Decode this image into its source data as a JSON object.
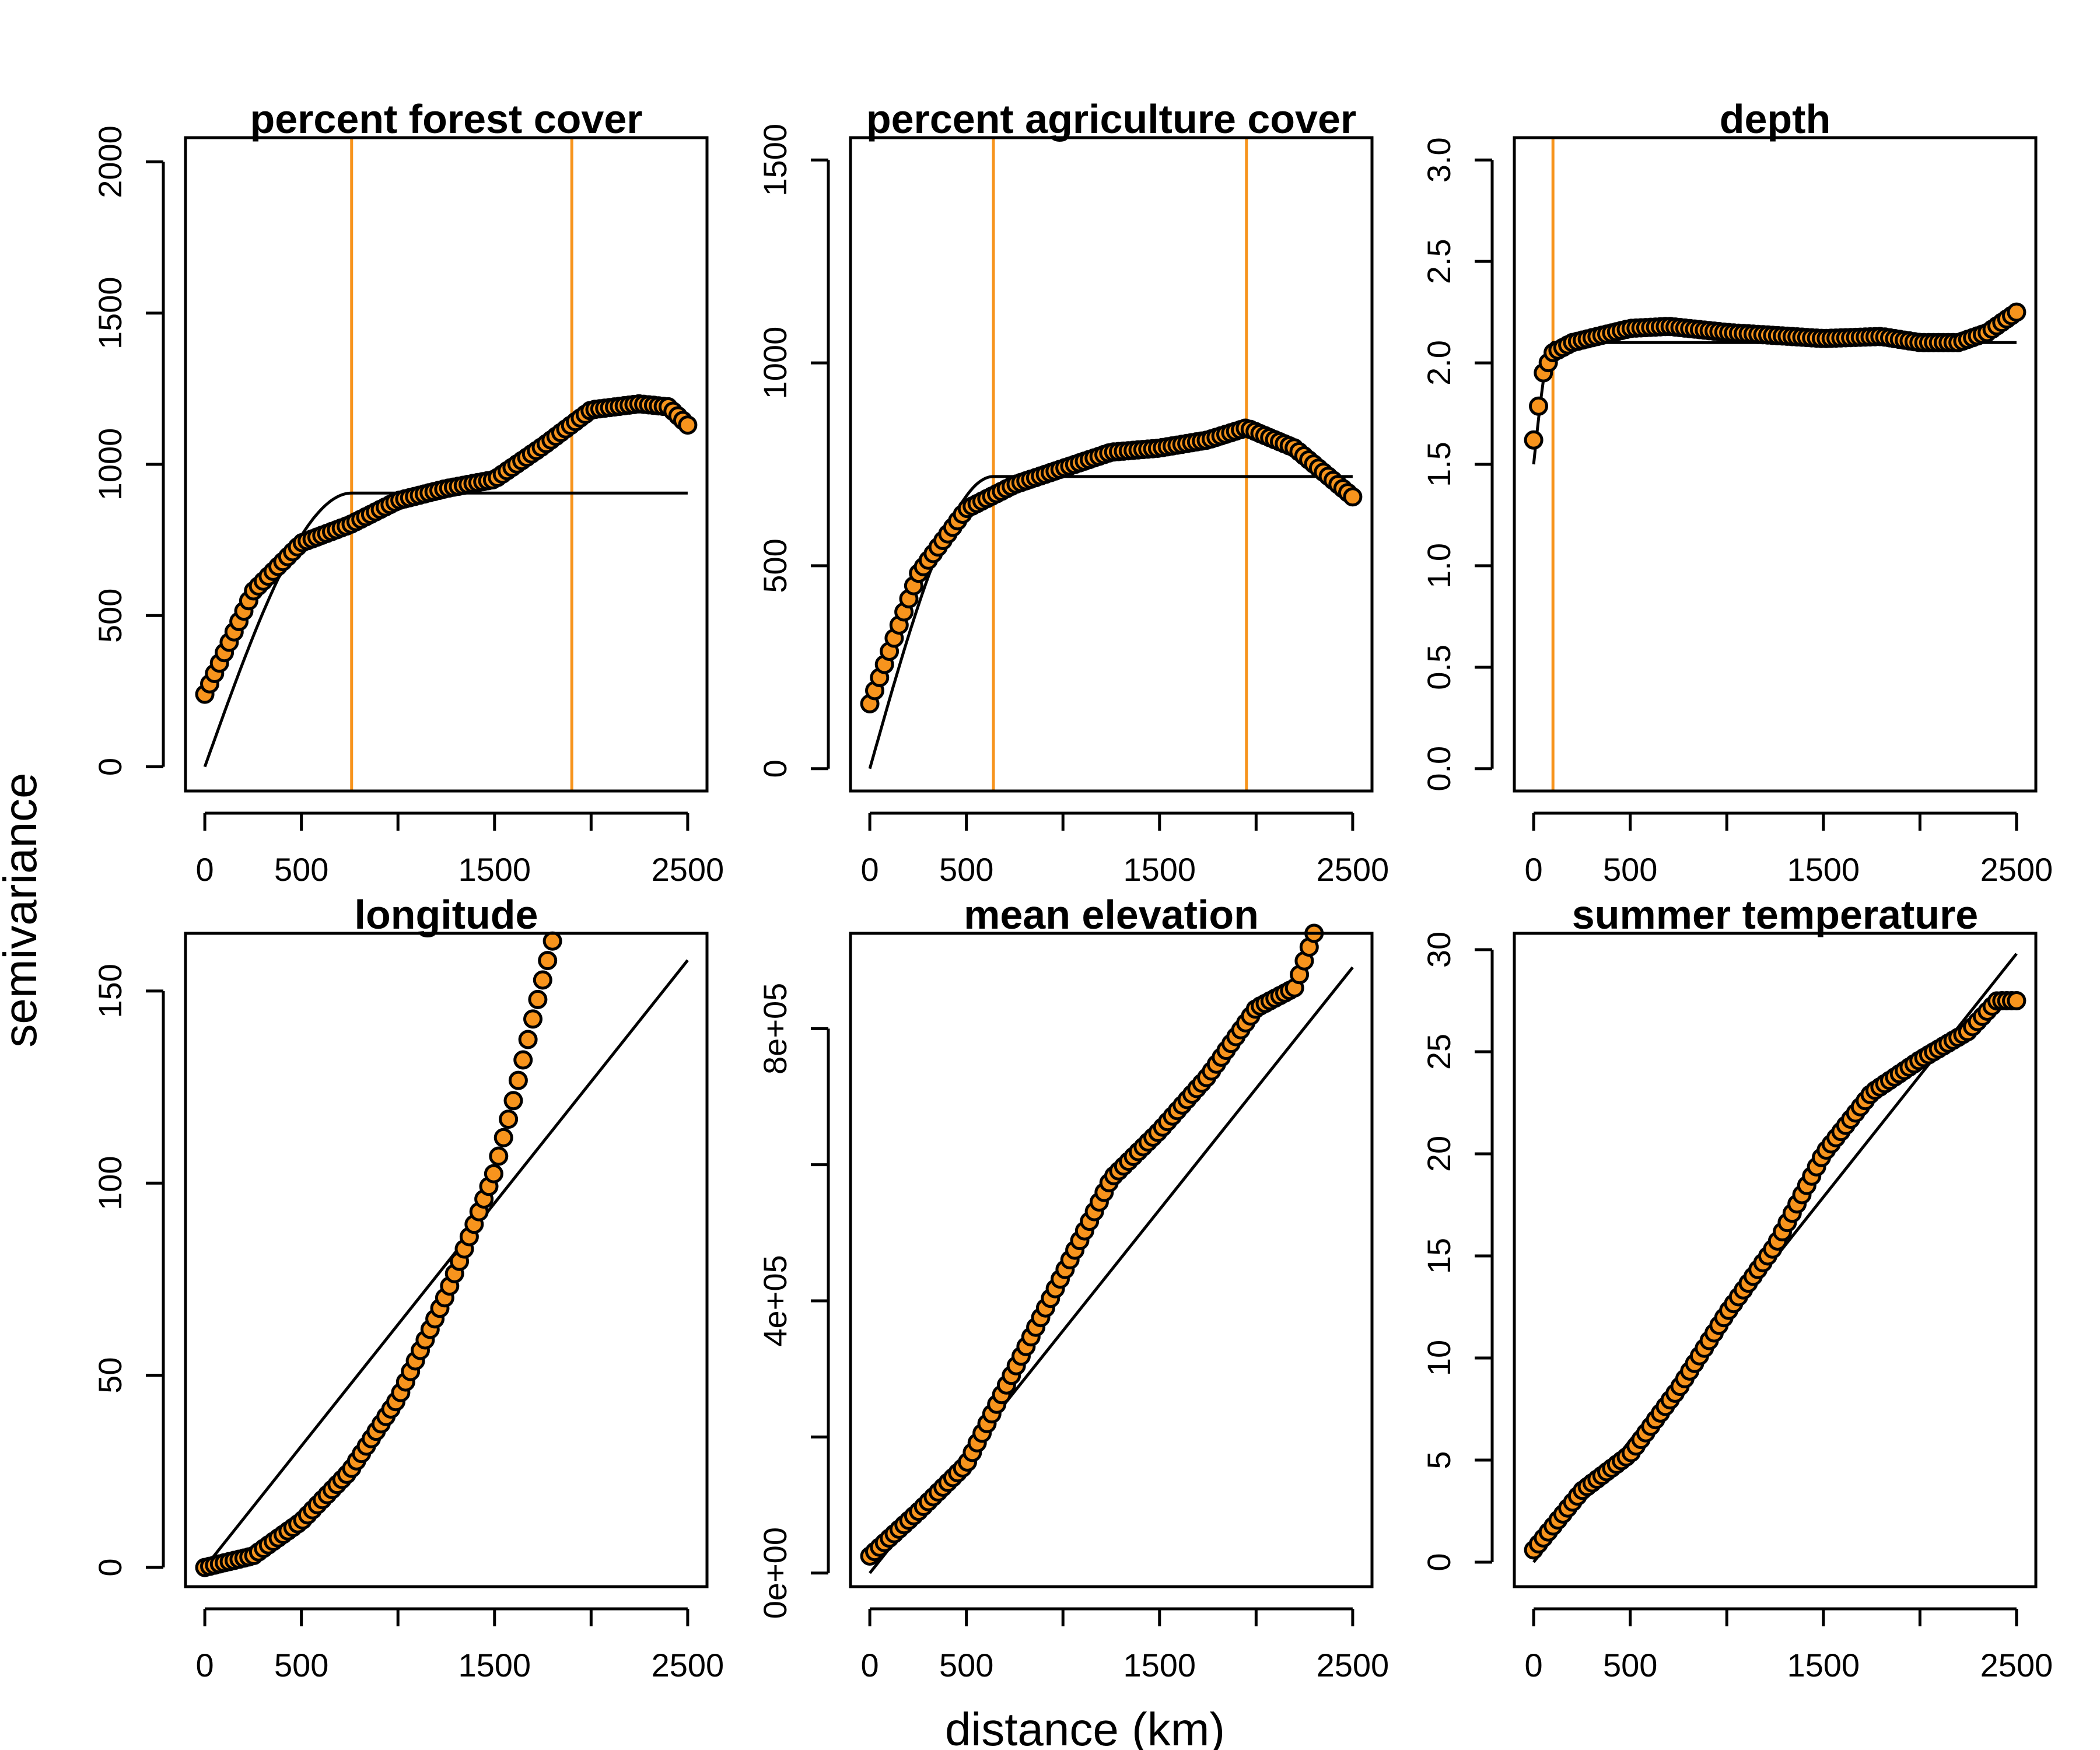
{
  "figure": {
    "xlabel": "distance (km)",
    "ylabel": "semivariance",
    "point_fill": "#F7941D",
    "point_stroke": "#000000",
    "vline_color": "#F7941D",
    "model_line_color": "#000000"
  },
  "chart_data": [
    {
      "type": "scatter",
      "title": "percent forest cover",
      "xlim": [
        -100,
        2600
      ],
      "ylim": [
        -80,
        2080
      ],
      "xticks": [
        0,
        500,
        1000,
        1500,
        2000,
        2500
      ],
      "xticklabels": [
        "0",
        "500",
        "",
        "1500",
        "",
        "2500"
      ],
      "yticks": [
        0,
        500,
        1000,
        1500,
        2000
      ],
      "yticklabels": [
        "0",
        "500",
        "1000",
        "1500",
        "2000"
      ],
      "vlines": [
        760,
        1900
      ],
      "model": {
        "kind": "spherical",
        "nugget": 0,
        "sill": 905,
        "range": 760,
        "xmax": 2500
      },
      "series": [
        {
          "x": [
            0,
            250,
            500,
            750,
            1000,
            1250,
            1500,
            1750,
            2000,
            2250,
            2400,
            2500
          ],
          "y": [
            240,
            580,
            740,
            800,
            880,
            920,
            950,
            1060,
            1180,
            1200,
            1190,
            1130
          ]
        }
      ]
    },
    {
      "type": "scatter",
      "title": "percent agriculture cover",
      "xlim": [
        -100,
        2600
      ],
      "ylim": [
        -55,
        1555
      ],
      "xticks": [
        0,
        500,
        1000,
        1500,
        2000,
        2500
      ],
      "xticklabels": [
        "0",
        "500",
        "",
        "1500",
        "",
        "2500"
      ],
      "yticks": [
        0,
        500,
        1000,
        1500
      ],
      "yticklabels": [
        "0",
        "500",
        "1000",
        "1500"
      ],
      "vlines": [
        640,
        1950
      ],
      "model": {
        "kind": "spherical",
        "nugget": 0,
        "sill": 720,
        "range": 640,
        "xmax": 2500
      },
      "series": [
        {
          "x": [
            0,
            250,
            500,
            750,
            1000,
            1250,
            1500,
            1750,
            1950,
            2200,
            2350,
            2500
          ],
          "y": [
            160,
            480,
            640,
            700,
            740,
            780,
            790,
            810,
            840,
            790,
            730,
            670
          ]
        }
      ]
    },
    {
      "type": "scatter",
      "title": "depth",
      "xlim": [
        -100,
        2600
      ],
      "ylim": [
        -0.11,
        3.11
      ],
      "xticks": [
        0,
        500,
        1000,
        1500,
        2000,
        2500
      ],
      "xticklabels": [
        "0",
        "500",
        "",
        "1500",
        "",
        "2500"
      ],
      "yticks": [
        0,
        0.5,
        1,
        1.5,
        2,
        2.5,
        3
      ],
      "yticklabels": [
        "0.0",
        "0.5",
        "1.0",
        "1.5",
        "2.0",
        "2.5",
        "3.0"
      ],
      "vlines": [
        100
      ],
      "model": {
        "kind": "spherical",
        "nugget": 1.5,
        "sill": 2.1,
        "range": 100,
        "xmax": 2500
      },
      "series": [
        {
          "x": [
            0,
            50,
            100,
            200,
            500,
            700,
            1000,
            1500,
            1800,
            2000,
            2200,
            2350,
            2500
          ],
          "y": [
            1.62,
            1.95,
            2.05,
            2.1,
            2.17,
            2.18,
            2.15,
            2.12,
            2.13,
            2.1,
            2.1,
            2.15,
            2.25
          ]
        }
      ]
    },
    {
      "type": "scatter",
      "title": "longitude",
      "xlim": [
        -100,
        2600
      ],
      "ylim": [
        -5,
        165
      ],
      "xticks": [
        0,
        500,
        1000,
        1500,
        2000,
        2500
      ],
      "xticklabels": [
        "0",
        "500",
        "",
        "1500",
        "",
        "2500"
      ],
      "yticks": [
        0,
        50,
        100,
        150
      ],
      "yticklabels": [
        "0",
        "50",
        "100",
        "150"
      ],
      "model": {
        "kind": "linear",
        "x": [
          0,
          2500
        ],
        "y": [
          0,
          158
        ]
      },
      "series": [
        {
          "x": [
            0,
            250,
            500,
            750,
            1000,
            1250,
            1400,
            1500,
            1600,
            1700,
            1800
          ],
          "y": [
            0,
            3,
            12,
            25,
            44,
            71,
            90,
            103,
            122,
            143,
            163
          ]
        }
      ]
    },
    {
      "type": "scatter",
      "title": "mean elevation",
      "xlim": [
        -100,
        2600
      ],
      "ylim": [
        -20000,
        940000
      ],
      "xticks": [
        0,
        500,
        1000,
        1500,
        2000,
        2500
      ],
      "xticklabels": [
        "0",
        "500",
        "",
        "1500",
        "",
        "2500"
      ],
      "yticks": [
        0,
        200000,
        400000,
        600000,
        800000
      ],
      "yticklabels": [
        "0e+00",
        "",
        "4e+05",
        "",
        "8e+05"
      ],
      "model": {
        "kind": "linear",
        "x": [
          0,
          2500
        ],
        "y": [
          0,
          890000
        ]
      },
      "series": [
        {
          "x": [
            0,
            250,
            500,
            750,
            1000,
            1250,
            1500,
            1750,
            2000,
            2200,
            2300
          ],
          "y": [
            25000,
            90000,
            160000,
            300000,
            440000,
            580000,
            650000,
            730000,
            830000,
            860000,
            940000
          ]
        }
      ]
    },
    {
      "type": "scatter",
      "title": "summer temperature",
      "xlim": [
        -100,
        2600
      ],
      "ylim": [
        -1.2,
        30.8
      ],
      "xticks": [
        0,
        500,
        1000,
        1500,
        2000,
        2500
      ],
      "xticklabels": [
        "0",
        "500",
        "",
        "1500",
        "",
        "2500"
      ],
      "yticks": [
        0,
        5,
        10,
        15,
        20,
        25,
        30
      ],
      "yticklabels": [
        "0",
        "5",
        "10",
        "15",
        "20",
        "25",
        "30"
      ],
      "model": {
        "kind": "linear",
        "x": [
          0,
          2500
        ],
        "y": [
          0,
          29.8
        ]
      },
      "series": [
        {
          "x": [
            0,
            250,
            500,
            750,
            1000,
            1250,
            1500,
            1750,
            2000,
            2250,
            2400,
            2500
          ],
          "y": [
            0.6,
            3.5,
            5.3,
            8.5,
            12.2,
            15.5,
            20,
            23,
            24.6,
            26,
            27.5,
            27.5
          ]
        }
      ]
    }
  ]
}
